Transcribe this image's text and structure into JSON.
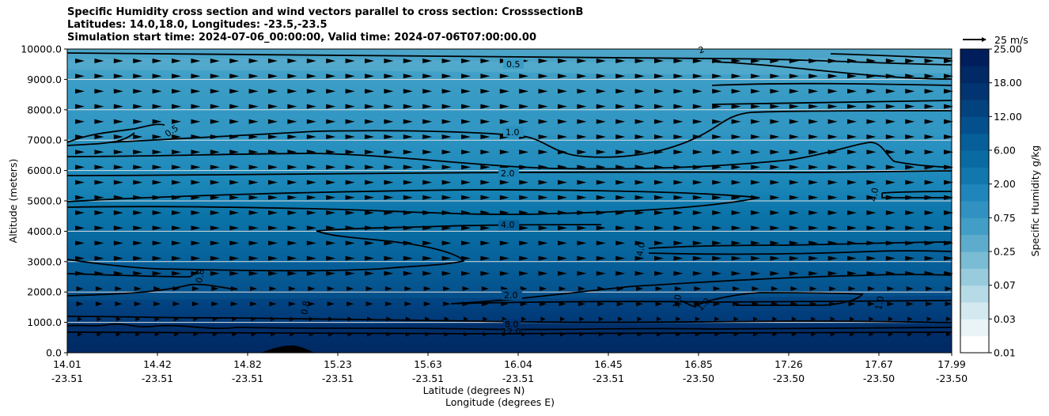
{
  "title": {
    "line1": "Specific Humidity cross section and wind vectors parallel to cross section: CrosssectionB",
    "line2": "Latitudes: 14.0,18.0, Longitudes: -23.5,-23.5",
    "line3": "Simulation start time: 2024-07-06_00:00:00, Valid time: 2024-07-06T07:00:00.00"
  },
  "quiver_key": {
    "label": "25 m/s"
  },
  "colors": {
    "fill_low": "#4ea6c8",
    "fill_mid": "#0a73a8",
    "fill_high": "#00306c",
    "gridline": "#e0e0e0",
    "contour": "#000000"
  },
  "chart_data": {
    "type": "heatmap",
    "title": "Specific Humidity cross section and wind vectors parallel to cross section: CrosssectionB",
    "xlabel": "Latitude (degrees N)",
    "xlabel2": "Longitude (degrees E)",
    "ylabel": "Altitude (meters)",
    "ylim": [
      0,
      10000
    ],
    "yticks": [
      "0.0",
      "1000.0",
      "2000.0",
      "3000.0",
      "4000.0",
      "5000.0",
      "6000.0",
      "7000.0",
      "8000.0",
      "9000.0",
      "10000.0"
    ],
    "xticks_lat": [
      "14.01",
      "14.42",
      "14.82",
      "15.23",
      "15.63",
      "16.04",
      "16.45",
      "16.85",
      "17.26",
      "17.67",
      "17.99"
    ],
    "xticks_lon": [
      "-23.51",
      "-23.51",
      "-23.51",
      "-23.51",
      "-23.51",
      "-23.51",
      "-23.51",
      "-23.50",
      "-23.50",
      "-23.50",
      "-23.50"
    ],
    "grid": "horizontal",
    "colorbar": {
      "label": "Specific Humidity g/kg",
      "ticks": [
        "0.01",
        "0.03",
        "0.07",
        "0.25",
        "0.75",
        "2.00",
        "6.00",
        "12.00",
        "18.00",
        "25.00"
      ]
    },
    "contour_labels": [
      "0.5",
      "1.0",
      "2.0",
      "4.0",
      "0.5",
      "4.0",
      "2.0",
      "4.0",
      "0.8",
      "0.8",
      "8.0",
      "12.0",
      "1.0",
      "1.0",
      "1.0",
      "2"
    ]
  }
}
